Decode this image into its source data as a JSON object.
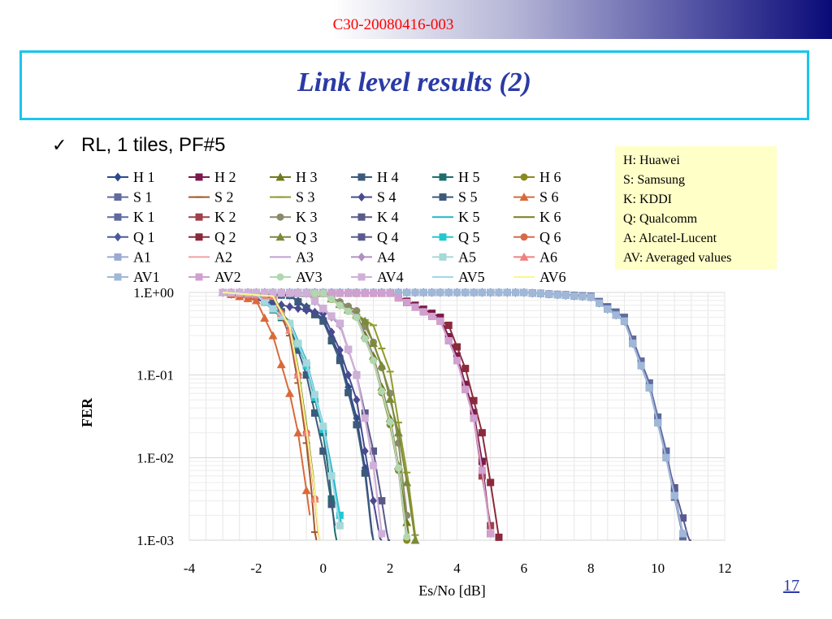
{
  "header": {
    "doc_id": "C30-20080416-003"
  },
  "slide": {
    "title": "Link level results (2)",
    "bullet": "RL, 1 tiles, PF#5",
    "page_number": "17"
  },
  "key_box": [
    "H: Huawei",
    "S: Samsung",
    "K: KDDI",
    "Q: Qualcomm",
    "A: Alcatel-Lucent",
    "AV: Averaged values"
  ],
  "icons": {
    "bullet": "check-icon"
  },
  "colors": {
    "title": "#2a3aa6",
    "doc_id": "#ff0000",
    "title_border": "#19c6ee",
    "key_bg": "#ffffc8"
  },
  "chart_data": {
    "type": "line",
    "xlabel": "Es/No [dB]",
    "ylabel": "FER",
    "xlim": [
      -4,
      12
    ],
    "xticks": [
      "-4",
      "-2",
      "0",
      "2",
      "4",
      "6",
      "8",
      "10",
      "12"
    ],
    "yscale": "log",
    "ylim": [
      0.001,
      1
    ],
    "yticks": [
      "1.E+00",
      "1.E-01",
      "1.E-02",
      "1.E-03"
    ],
    "grid": true,
    "legend_position": "top",
    "series": [
      {
        "name": "H 1",
        "color": "#2b4a8c",
        "marker": "diamond",
        "x": [
          -3,
          -1,
          0,
          0.5,
          1,
          1.25,
          1.5
        ],
        "y": [
          1,
          0.93,
          0.48,
          0.17,
          0.03,
          0.0075,
          0.00085
        ]
      },
      {
        "name": "H 2",
        "color": "#7b1a4c",
        "marker": "square",
        "x": [
          -3,
          2,
          3.5,
          4,
          4.5,
          4.75,
          5
        ],
        "y": [
          1,
          0.98,
          0.5,
          0.17,
          0.035,
          0.009,
          0.0012
        ]
      },
      {
        "name": "H 3",
        "color": "#6f7a1a",
        "marker": "triangle",
        "x": [
          -3,
          0,
          1,
          1.5,
          2,
          2.25,
          2.55
        ],
        "y": [
          1,
          0.98,
          0.55,
          0.17,
          0.03,
          0.008,
          0.0012
        ]
      },
      {
        "name": "H 4",
        "color": "#3c5a7a",
        "marker": "square",
        "x": [
          -3,
          -1,
          0,
          0.5,
          1,
          1.25,
          1.5
        ],
        "y": [
          1,
          0.92,
          0.45,
          0.15,
          0.025,
          0.0065,
          0.0008
        ]
      },
      {
        "name": "H 5",
        "color": "#1e6e6e",
        "marker": "square",
        "x": [
          -3,
          -2,
          -1,
          -0.5,
          0,
          0.2,
          0.4
        ],
        "y": [
          1,
          0.95,
          0.4,
          0.13,
          0.02,
          0.005,
          0.0008
        ]
      },
      {
        "name": "H 6",
        "color": "#8a8a20",
        "marker": "circle",
        "x": [
          -3,
          0,
          1,
          1.5,
          2,
          2.25,
          2.5
        ],
        "y": [
          1,
          0.97,
          0.5,
          0.15,
          0.025,
          0.007,
          0.001
        ]
      },
      {
        "name": "S 1",
        "color": "#5f6aa0",
        "marker": "square",
        "x": [
          -3,
          6,
          8,
          9,
          9.75,
          10.25,
          10.75
        ],
        "y": [
          1,
          1,
          0.9,
          0.5,
          0.08,
          0.012,
          0.0012
        ]
      },
      {
        "name": "S 2",
        "color": "#a0582a",
        "marker": "dash",
        "x": [
          -3,
          -1.5,
          -1,
          -0.75,
          -0.5,
          -0.35,
          -0.2
        ],
        "y": [
          1,
          0.9,
          0.3,
          0.08,
          0.015,
          0.004,
          0.0007
        ]
      },
      {
        "name": "S 3",
        "color": "#8f9a2a",
        "marker": "dash",
        "x": [
          -3,
          0,
          1.5,
          2,
          2.3,
          2.55,
          2.8
        ],
        "y": [
          1,
          0.98,
          0.4,
          0.11,
          0.02,
          0.005,
          0.0008
        ]
      },
      {
        "name": "S 4",
        "color": "#4a4a90",
        "marker": "diamond",
        "x": [
          -3,
          0,
          0.5,
          1,
          1.25,
          1.5,
          1.75
        ],
        "y": [
          1,
          0.55,
          0.2,
          0.05,
          0.012,
          0.003,
          0.0008
        ]
      },
      {
        "name": "S 5",
        "color": "#3c5a7a",
        "marker": "square",
        "x": [
          -3,
          -2,
          -1.5,
          -1,
          -0.5,
          0,
          0.35
        ],
        "y": [
          1,
          0.98,
          0.85,
          0.4,
          0.1,
          0.012,
          0.0015
        ]
      },
      {
        "name": "S 6",
        "color": "#d86a3a",
        "marker": "triangle",
        "x": [
          -3,
          -2,
          -1.5,
          -1,
          -0.75,
          -0.5,
          -0.4
        ],
        "y": [
          1,
          0.8,
          0.3,
          0.06,
          0.02,
          0.004,
          0.002
        ]
      },
      {
        "name": "K 1",
        "color": "#5f6aa0",
        "marker": "square",
        "x": [
          -3,
          6,
          8,
          9,
          9.75,
          10.25,
          10.75
        ],
        "y": [
          1,
          1,
          0.88,
          0.45,
          0.07,
          0.01,
          0.0011
        ]
      },
      {
        "name": "K 2",
        "color": "#a0404a",
        "marker": "square",
        "x": [
          -3,
          2,
          3.5,
          4,
          4.5,
          4.75,
          5
        ],
        "y": [
          1,
          0.98,
          0.45,
          0.15,
          0.03,
          0.006,
          0.0015
        ]
      },
      {
        "name": "K 3",
        "color": "#8a8a6a",
        "marker": "circle",
        "x": [
          -3,
          0,
          1,
          1.5,
          2,
          2.25,
          2.5
        ],
        "y": [
          1,
          0.99,
          0.6,
          0.25,
          0.06,
          0.015,
          0.002
        ]
      },
      {
        "name": "K 4",
        "color": "#5a5a8a",
        "marker": "square",
        "x": [
          -3,
          -0.5,
          0.5,
          1,
          1.5,
          1.75,
          2
        ],
        "y": [
          1,
          0.97,
          0.42,
          0.1,
          0.012,
          0.003,
          0.0007
        ]
      },
      {
        "name": "K 5",
        "color": "#22b5c8",
        "marker": "none",
        "x": [
          -3,
          -2,
          -1,
          -0.5,
          0,
          0.3,
          0.55
        ],
        "y": [
          1,
          0.96,
          0.45,
          0.15,
          0.025,
          0.006,
          0.0015
        ]
      },
      {
        "name": "K 6",
        "color": "#7a7a22",
        "marker": "none",
        "x": [
          -3,
          -1.5,
          -1,
          -0.75,
          -0.5,
          -0.3,
          -0.1
        ],
        "y": [
          1,
          0.92,
          0.4,
          0.12,
          0.025,
          0.006,
          0.0008
        ]
      },
      {
        "name": "Q 1",
        "color": "#4a5aa0",
        "marker": "diamond",
        "x": [
          -3,
          6,
          8,
          9,
          9.75,
          10.25,
          10.75
        ],
        "y": [
          1,
          1,
          0.88,
          0.45,
          0.07,
          0.01,
          0.0012
        ]
      },
      {
        "name": "Q 2",
        "color": "#8a2a3a",
        "marker": "square",
        "x": [
          -3,
          2,
          3.75,
          4.25,
          4.75,
          5,
          5.3
        ],
        "y": [
          1,
          0.98,
          0.4,
          0.12,
          0.02,
          0.005,
          0.0008
        ]
      },
      {
        "name": "Q 3",
        "color": "#7a8a3a",
        "marker": "triangle",
        "x": [
          -3,
          0,
          1.25,
          1.75,
          2.25,
          2.5,
          2.75
        ],
        "y": [
          1,
          0.98,
          0.45,
          0.13,
          0.02,
          0.005,
          0.001
        ]
      },
      {
        "name": "Q 4",
        "color": "#5a5a90",
        "marker": "square",
        "x": [
          -3,
          6,
          8,
          9,
          9.75,
          10.25,
          11
        ],
        "y": [
          1,
          1,
          0.88,
          0.45,
          0.07,
          0.01,
          0.0008
        ]
      },
      {
        "name": "Q 5",
        "color": "#22c8d0",
        "marker": "square",
        "x": [
          -3,
          -2,
          -1,
          -0.5,
          0,
          0.25,
          0.5
        ],
        "y": [
          1,
          0.95,
          0.42,
          0.13,
          0.022,
          0.006,
          0.002
        ]
      },
      {
        "name": "Q 6",
        "color": "#d86a4a",
        "marker": "circle",
        "x": [
          -3,
          -1.5,
          -1,
          -0.75,
          -0.5,
          -0.3,
          -0.1
        ],
        "y": [
          1,
          0.9,
          0.35,
          0.1,
          0.02,
          0.005,
          0.0008
        ]
      },
      {
        "name": "A1",
        "color": "#9aaad0",
        "marker": "square",
        "x": [
          -3,
          6,
          8,
          9,
          9.75,
          10.25,
          10.75
        ],
        "y": [
          1,
          1,
          0.88,
          0.45,
          0.07,
          0.01,
          0.0012
        ]
      },
      {
        "name": "A2",
        "color": "#f0a0a0",
        "marker": "none",
        "x": [
          -3,
          2,
          3.5,
          4,
          4.5,
          4.75,
          5
        ],
        "y": [
          1,
          0.98,
          0.45,
          0.15,
          0.03,
          0.007,
          0.0012
        ]
      },
      {
        "name": "A3",
        "color": "#c0a0d0",
        "marker": "none",
        "x": [
          -3,
          0,
          1,
          1.5,
          2,
          2.25,
          2.5
        ],
        "y": [
          1,
          0.98,
          0.52,
          0.16,
          0.028,
          0.007,
          0.0011
        ]
      },
      {
        "name": "A4",
        "color": "#b090c0",
        "marker": "diamond",
        "x": [
          -3,
          -0.5,
          0.5,
          1,
          1.25,
          1.5,
          1.75
        ],
        "y": [
          1,
          0.97,
          0.4,
          0.1,
          0.03,
          0.008,
          0.0012
        ]
      },
      {
        "name": "A5",
        "color": "#a8d8d8",
        "marker": "square",
        "x": [
          -3,
          -2,
          -1,
          -0.5,
          0,
          0.25,
          0.5
        ],
        "y": [
          1,
          0.95,
          0.42,
          0.14,
          0.024,
          0.006,
          0.0015
        ]
      },
      {
        "name": "A6",
        "color": "#f08080",
        "marker": "triangle",
        "x": [
          -3,
          -1.5,
          -1,
          -0.75,
          -0.5,
          -0.3,
          -0.1
        ],
        "y": [
          1,
          0.9,
          0.35,
          0.1,
          0.02,
          0.005,
          0.0008
        ]
      },
      {
        "name": "AV1",
        "color": "#a0b8d8",
        "marker": "square",
        "x": [
          -3,
          6,
          8,
          9,
          9.75,
          10.25,
          10.75
        ],
        "y": [
          1,
          1,
          0.88,
          0.45,
          0.07,
          0.01,
          0.0012
        ]
      },
      {
        "name": "AV2",
        "color": "#d0a0d0",
        "marker": "square",
        "x": [
          -3,
          2,
          3.5,
          4,
          4.5,
          4.75,
          5
        ],
        "y": [
          1,
          0.98,
          0.45,
          0.15,
          0.03,
          0.007,
          0.0012
        ]
      },
      {
        "name": "AV3",
        "color": "#b0d8b0",
        "marker": "circle",
        "x": [
          -3,
          0,
          1,
          1.5,
          2,
          2.25,
          2.5
        ],
        "y": [
          1,
          0.98,
          0.5,
          0.15,
          0.027,
          0.0075,
          0.0011
        ]
      },
      {
        "name": "AV4",
        "color": "#d0b0d8",
        "marker": "square",
        "x": [
          -3,
          -0.5,
          0.5,
          1,
          1.25,
          1.5,
          1.75
        ],
        "y": [
          1,
          0.97,
          0.42,
          0.1,
          0.03,
          0.008,
          0.0012
        ]
      },
      {
        "name": "AV5",
        "color": "#a0d8e8",
        "marker": "none",
        "x": [
          -3,
          -2,
          -1,
          -0.5,
          0,
          0.25,
          0.5
        ],
        "y": [
          1,
          0.95,
          0.42,
          0.14,
          0.024,
          0.006,
          0.0015
        ]
      },
      {
        "name": "AV6",
        "color": "#f8f890",
        "marker": "none",
        "x": [
          -3,
          -1.5,
          -1,
          -0.75,
          -0.5,
          -0.3,
          -0.1
        ],
        "y": [
          1,
          0.9,
          0.38,
          0.11,
          0.022,
          0.0055,
          0.0009
        ]
      }
    ]
  }
}
